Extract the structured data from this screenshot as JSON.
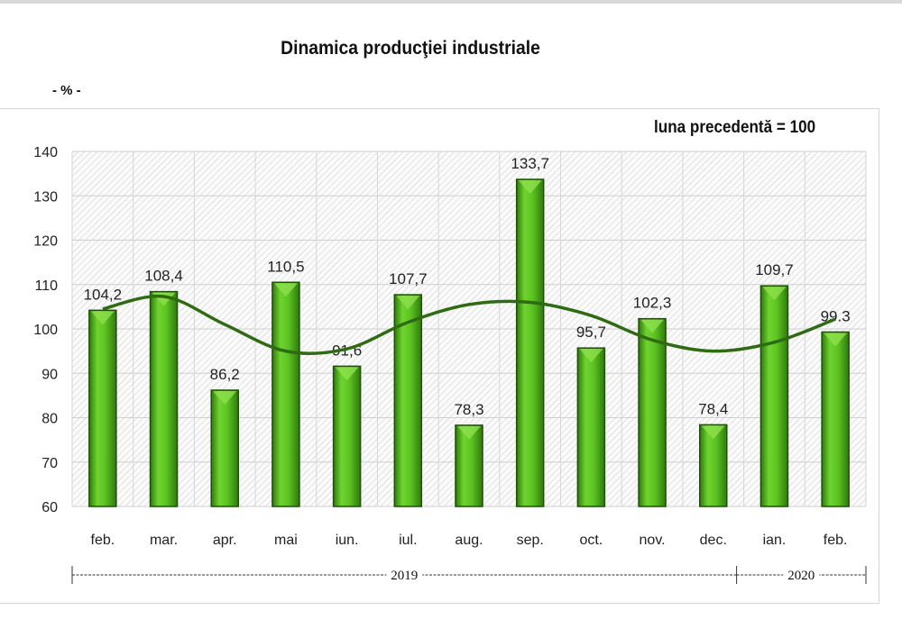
{
  "chart_data": {
    "type": "bar",
    "title": "Dinamica producţiei industriale",
    "unit_label": "- % -",
    "base_note": "luna precedentă = 100",
    "categories": [
      "feb.",
      "mar.",
      "apr.",
      "mai",
      "iun.",
      "iul.",
      "aug.",
      "sep.",
      "oct.",
      "nov.",
      "dec.",
      "ian.",
      "feb."
    ],
    "values": [
      104.2,
      108.4,
      86.2,
      110.5,
      91.6,
      107.7,
      78.3,
      133.7,
      95.7,
      102.3,
      78.4,
      109.7,
      99.3
    ],
    "data_labels": [
      "104,2",
      "108,4",
      "86,2",
      "110,5",
      "91,6",
      "107,7",
      "78,3",
      "133,7",
      "95,7",
      "102,3",
      "78,4",
      "109,7",
      "99.3"
    ],
    "trendline": [
      104.5,
      107.3,
      101,
      95,
      95.5,
      101.5,
      105.5,
      106,
      103,
      97.5,
      95,
      97,
      102.2
    ],
    "year_groups": [
      {
        "label": "2019",
        "span": 11
      },
      {
        "label": "2020",
        "span": 2
      }
    ],
    "ylim": [
      60,
      140
    ],
    "yticks": [
      60,
      70,
      80,
      90,
      100,
      110,
      120,
      130,
      140
    ],
    "grid": true,
    "colors": {
      "bar": "#5cc221",
      "bar_dark": "#2f7a0d",
      "trend": "#2e6b12"
    }
  }
}
